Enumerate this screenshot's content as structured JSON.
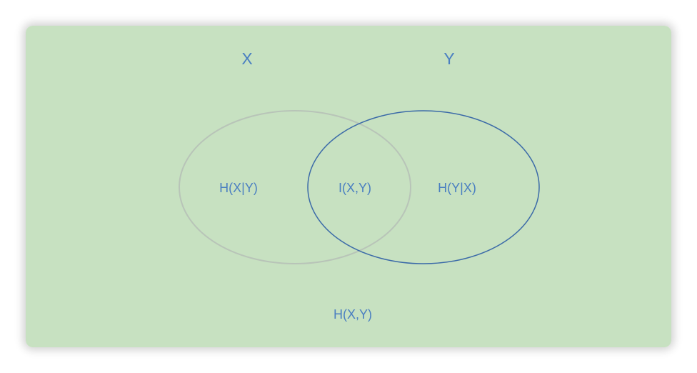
{
  "diagram": {
    "set_x_title": "X",
    "set_y_title": "Y",
    "left_region": "H(X|Y)",
    "intersection": "I(X,Y)",
    "right_region": "H(Y|X)",
    "joint": "H(X,Y)"
  },
  "colors": {
    "panel_fill": "#c7e1c1",
    "text": "#4a7fc1",
    "circle_x_stroke": "#b8c4b8",
    "circle_y_stroke": "#3b6aa8"
  }
}
